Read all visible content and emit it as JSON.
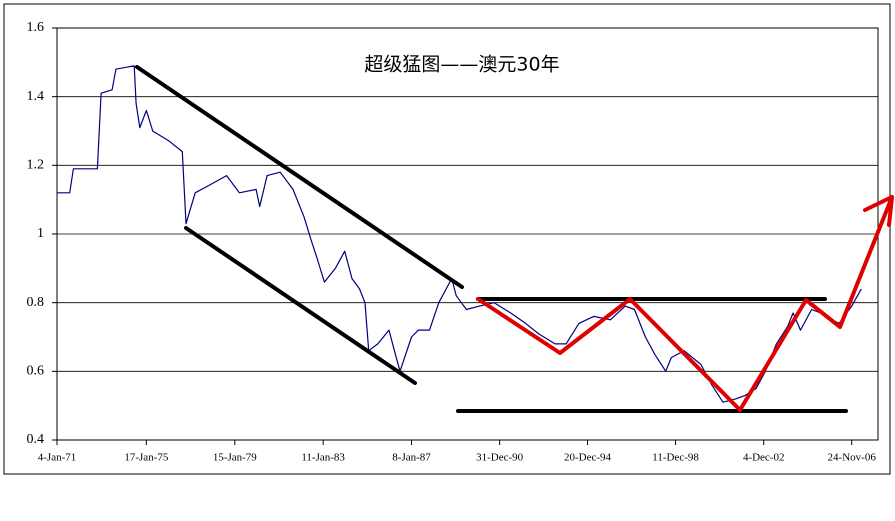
{
  "chart_data": {
    "type": "line",
    "title": "超级猛图——澳元30年",
    "color": "#000080",
    "x": [
      "1971-01-04",
      "1971-08-01",
      "1971-10-01",
      "1972-11-01",
      "1973-01-01",
      "1973-07-01",
      "1973-09-01",
      "1974-07-01",
      "1974-08-01",
      "1974-10-01",
      "1975-01-17",
      "1975-05-01",
      "1976-02-01",
      "1976-09-01",
      "1976-11-01",
      "1977-04-01",
      "1977-11-01",
      "1978-09-01",
      "1979-04-01",
      "1980-01-01",
      "1980-03-01",
      "1980-07-01",
      "1981-02-01",
      "1981-09-01",
      "1982-03-01",
      "1982-07-01",
      "1982-10-01",
      "1983-02-01",
      "1983-08-01",
      "1984-01-01",
      "1984-05-01",
      "1984-09-01",
      "1984-12-01",
      "1985-02-01",
      "1985-07-01",
      "1986-01-01",
      "1986-04-01",
      "1986-07-01",
      "1987-01-08",
      "1987-05-01",
      "1987-11-01",
      "1988-04-01",
      "1988-11-01",
      "1989-01-15",
      "1989-07-01",
      "1990-02-01",
      "1990-10-01",
      "1991-07-01",
      "1992-03-01",
      "1992-10-01",
      "1993-07-01",
      "1994-01-01",
      "1994-08-01",
      "1995-04-01",
      "1996-01-01",
      "1996-09-01",
      "1997-02-01",
      "1997-08-01",
      "1998-01-01",
      "1998-07-01",
      "1998-10-01",
      "1999-05-01",
      "2000-02-01",
      "2000-08-01",
      "2001-02-01",
      "2001-09-01",
      "2002-02-01",
      "2002-08-01",
      "2003-01-01",
      "2003-07-01",
      "2004-01-01",
      "2004-04-01",
      "2004-08-01",
      "2005-02-01",
      "2005-07-01",
      "2006-01-01",
      "2006-05-01",
      "2006-11-24",
      "2007-05-01"
    ],
    "values": [
      1.12,
      1.12,
      1.19,
      1.19,
      1.41,
      1.42,
      1.48,
      1.49,
      1.38,
      1.31,
      1.36,
      1.3,
      1.27,
      1.24,
      1.03,
      1.12,
      1.14,
      1.17,
      1.12,
      1.13,
      1.08,
      1.17,
      1.18,
      1.13,
      1.05,
      0.98,
      0.93,
      0.86,
      0.9,
      0.95,
      0.87,
      0.84,
      0.8,
      0.66,
      0.68,
      0.72,
      0.66,
      0.6,
      0.7,
      0.72,
      0.72,
      0.8,
      0.87,
      0.82,
      0.78,
      0.79,
      0.8,
      0.77,
      0.74,
      0.71,
      0.68,
      0.68,
      0.74,
      0.76,
      0.75,
      0.79,
      0.78,
      0.7,
      0.65,
      0.6,
      0.64,
      0.66,
      0.62,
      0.56,
      0.51,
      0.52,
      0.53,
      0.55,
      0.6,
      0.68,
      0.73,
      0.77,
      0.72,
      0.78,
      0.77,
      0.75,
      0.74,
      0.79,
      0.84
    ],
    "xlim": [
      "1971-01-04",
      "2008-02-01"
    ],
    "xticks": [
      {
        "value": "1971-01-04",
        "label": "4-Jan-71"
      },
      {
        "value": "1975-01-17",
        "label": "17-Jan-75"
      },
      {
        "value": "1979-01-15",
        "label": "15-Jan-79"
      },
      {
        "value": "1983-01-11",
        "label": "11-Jan-83"
      },
      {
        "value": "1987-01-08",
        "label": "8-Jan-87"
      },
      {
        "value": "1990-12-31",
        "label": "31-Dec-90"
      },
      {
        "value": "1994-12-20",
        "label": "20-Dec-94"
      },
      {
        "value": "1998-12-11",
        "label": "11-Dec-98"
      },
      {
        "value": "2002-12-04",
        "label": "4-Dec-02"
      },
      {
        "value": "2006-11-24",
        "label": "24-Nov-06"
      }
    ],
    "ylim": [
      0.4,
      1.6
    ],
    "yticks": [
      0.4,
      0.6,
      0.8,
      1,
      1.2,
      1.4,
      1.6
    ],
    "grid": true
  }
}
